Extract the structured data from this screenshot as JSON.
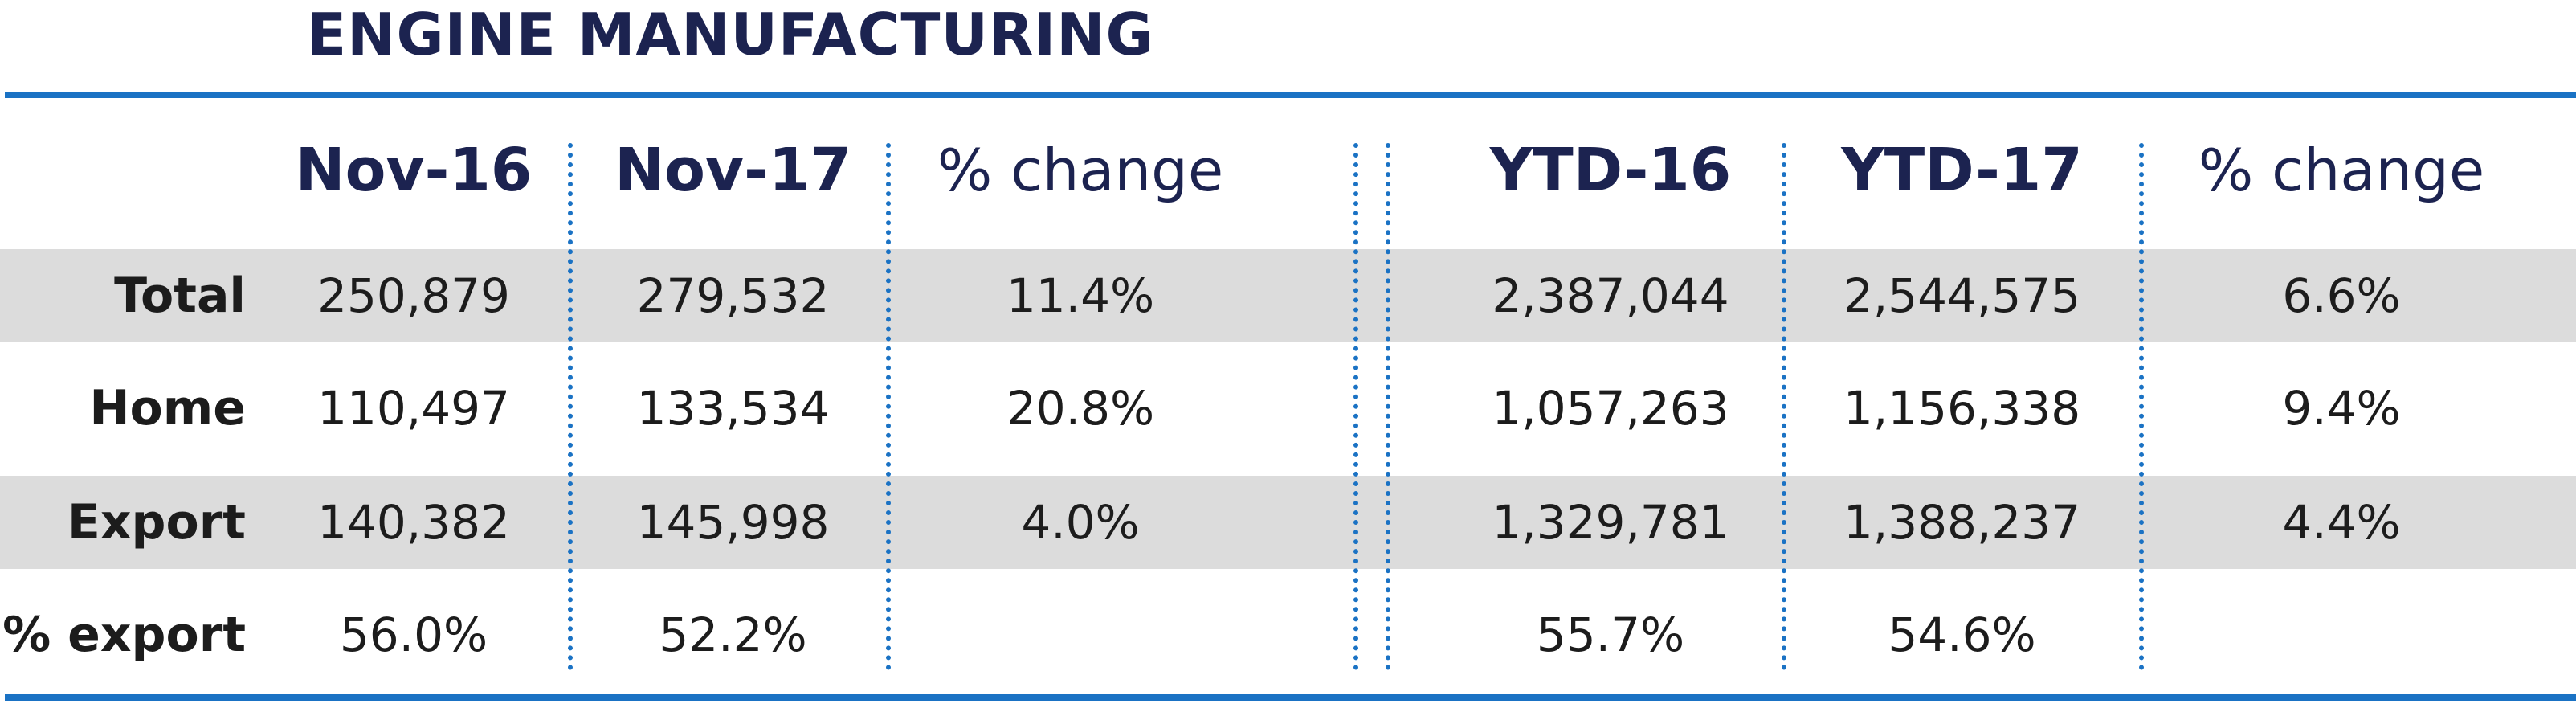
{
  "title": "ENGINE MANUFACTURING",
  "columns": [
    "Nov-16",
    "Nov-17",
    "% change",
    "YTD-16",
    "YTD-17",
    "% change"
  ],
  "rows": [
    {
      "label": "Total",
      "values": [
        "250,879",
        "279,532",
        "11.4%",
        "2,387,044",
        "2,544,575",
        "6.6%"
      ]
    },
    {
      "label": "Home",
      "values": [
        "110,497",
        "133,534",
        "20.8%",
        "1,057,263",
        "1,156,338",
        "9.4%"
      ]
    },
    {
      "label": "Export",
      "values": [
        "140,382",
        "145,998",
        "4.0%",
        "1,329,781",
        "1,388,237",
        "4.4%"
      ]
    },
    {
      "label": "% export",
      "values": [
        "56.0%",
        "52.2%",
        "",
        "55.7%",
        "54.6%",
        ""
      ]
    }
  ],
  "colors": {
    "accent": "#1a72c4",
    "heading": "#1c2350",
    "text": "#1c1c1c",
    "row_shade": "#dcdcdc",
    "background": "#ffffff"
  }
}
